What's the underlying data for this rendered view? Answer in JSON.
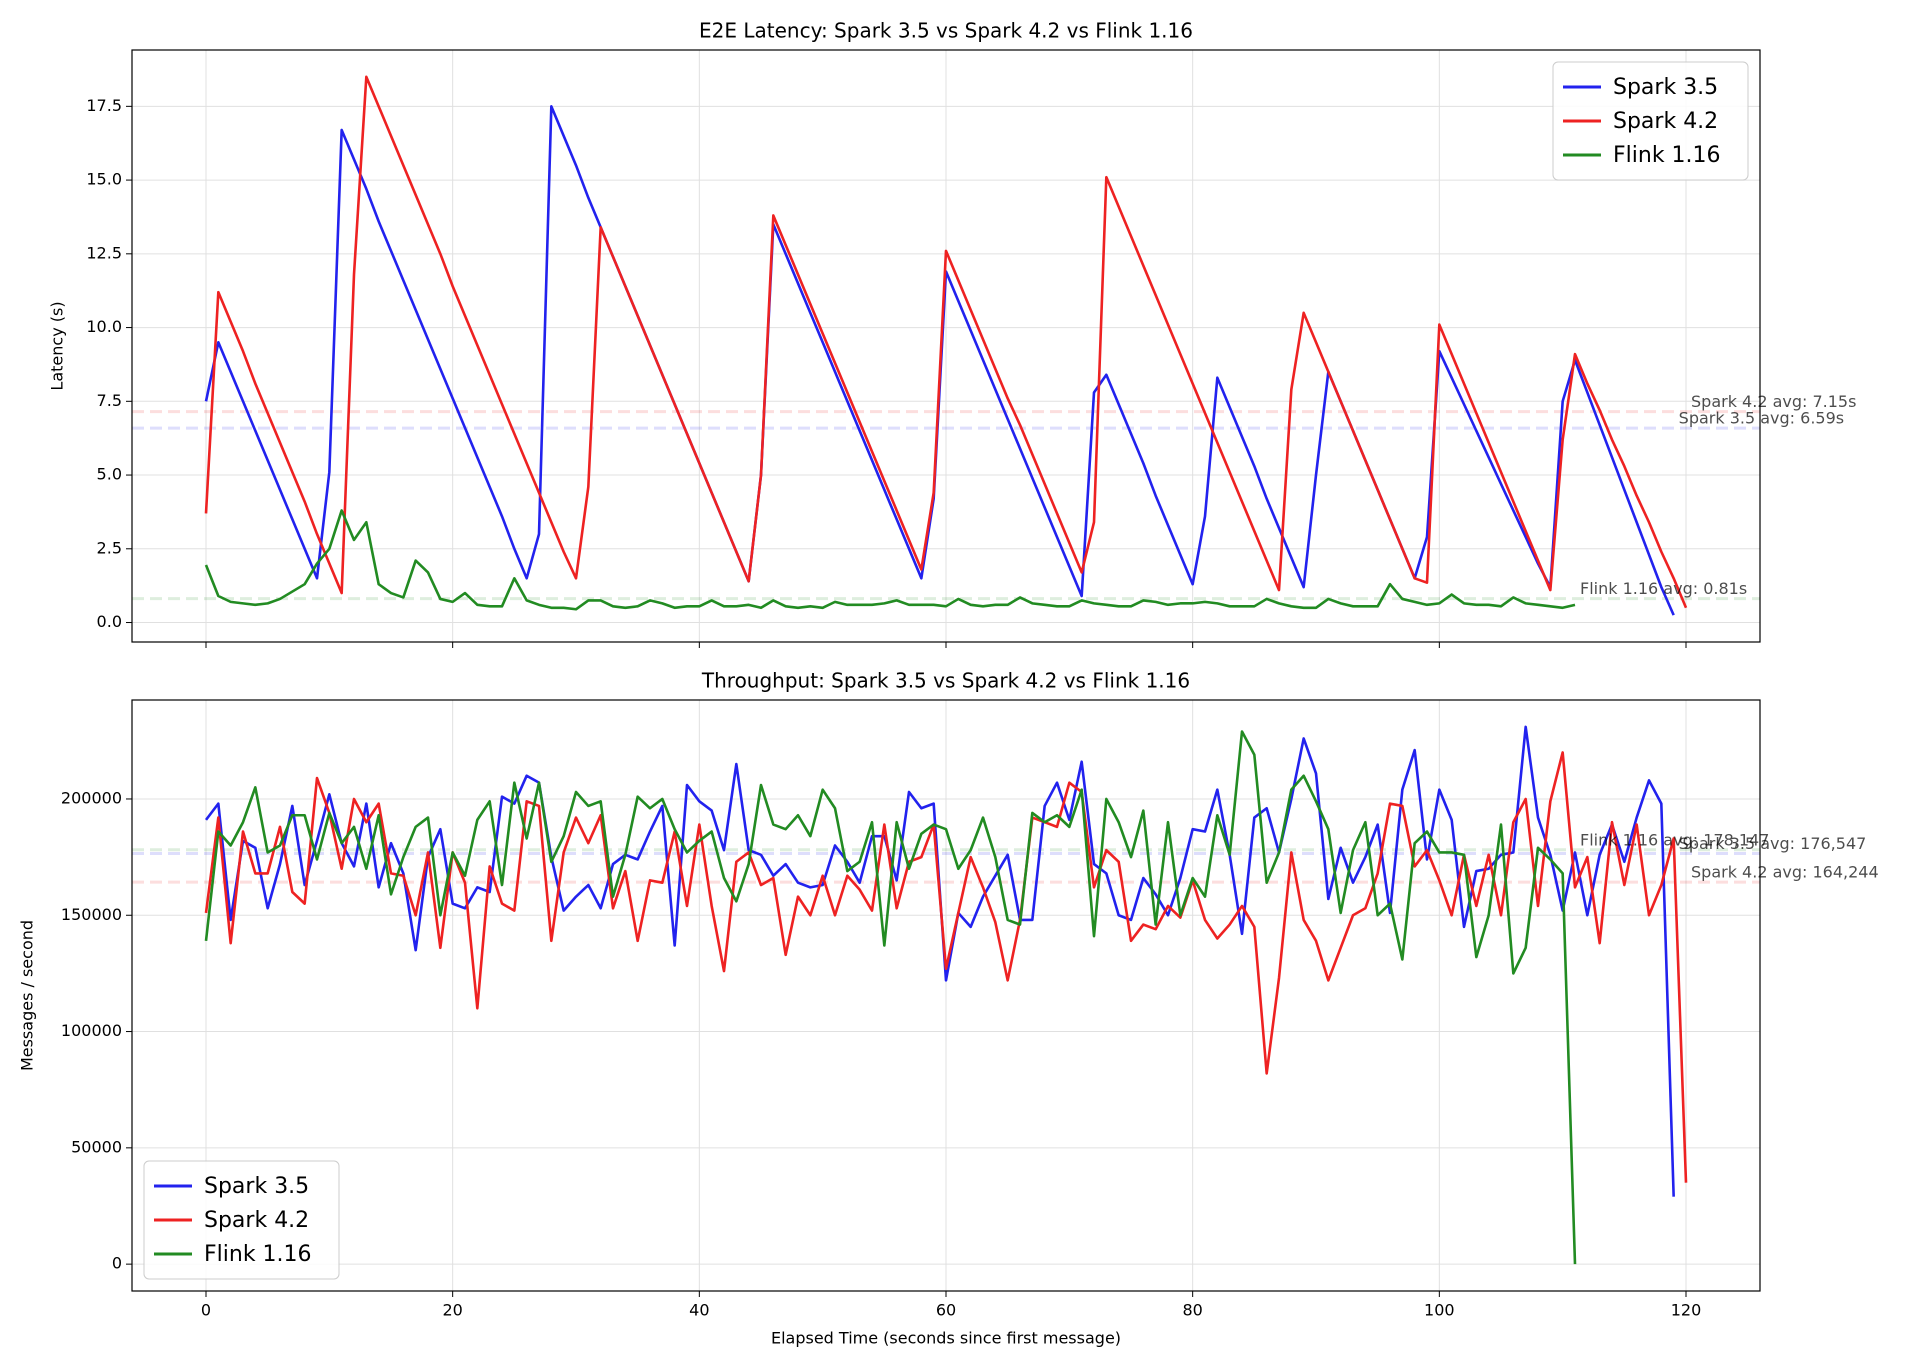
{
  "chart_data": [
    {
      "type": "line",
      "title": "E2E Latency: Spark 3.5 vs Spark 4.2 vs Flink 1.16",
      "y_label": "Latency (s)",
      "xlim": [
        -6,
        126
      ],
      "xticks": [
        0,
        20,
        40,
        60,
        80,
        100,
        120
      ],
      "show_xtick_labels": false,
      "ylim": [
        -0.66,
        19.41
      ],
      "yticks": [
        {
          "value": 0,
          "label": "0.0"
        },
        2.5,
        {
          "value": 5,
          "label": "5.0"
        },
        7.5,
        {
          "value": 10,
          "label": "10.0"
        },
        12.5,
        {
          "value": 15,
          "label": "15.0"
        },
        17.5
      ],
      "grid": true,
      "legend": "upper right",
      "x": [
        0,
        1,
        2,
        3,
        4,
        5,
        6,
        7,
        8,
        9,
        10,
        11,
        12,
        13,
        14,
        15,
        16,
        17,
        18,
        19,
        20,
        21,
        22,
        23,
        24,
        25,
        26,
        27,
        28,
        29,
        30,
        31,
        32,
        33,
        34,
        35,
        36,
        37,
        38,
        39,
        40,
        41,
        42,
        43,
        44,
        45,
        46,
        47,
        48,
        49,
        50,
        51,
        52,
        53,
        54,
        55,
        56,
        57,
        58,
        59,
        60,
        61,
        62,
        63,
        64,
        65,
        66,
        67,
        68,
        69,
        70,
        71,
        72,
        73,
        74,
        75,
        76,
        77,
        78,
        79,
        80,
        81,
        82,
        83,
        84,
        85,
        86,
        87,
        88,
        89,
        90,
        91,
        92,
        93,
        94,
        95,
        96,
        97,
        98,
        99,
        100,
        101,
        102,
        103,
        104,
        105,
        106,
        107,
        108,
        109,
        110,
        111,
        112,
        113,
        114,
        115,
        116,
        117,
        118,
        119,
        120
      ],
      "series": [
        {
          "name": "Spark 3.5",
          "color": "#2222ee",
          "avg": 6.59,
          "avg_label": "Spark 3.5 avg: 6.59s",
          "values": [
            7.5,
            9.5,
            8.5,
            7.5,
            6.5,
            5.5,
            4.5,
            3.5,
            2.5,
            1.5,
            5.1,
            16.7,
            15.7,
            14.7,
            13.6,
            12.6,
            11.6,
            10.6,
            9.6,
            8.6,
            7.6,
            6.6,
            5.6,
            4.6,
            3.6,
            2.5,
            1.5,
            3.0,
            17.5,
            16.5,
            15.5,
            14.4,
            13.4,
            12.4,
            11.4,
            10.4,
            9.4,
            8.4,
            7.4,
            6.4,
            5.4,
            4.4,
            3.4,
            2.4,
            1.4,
            5.0,
            13.5,
            12.5,
            11.5,
            10.5,
            9.5,
            8.5,
            7.5,
            6.5,
            5.5,
            4.5,
            3.5,
            2.5,
            1.5,
            4.2,
            11.9,
            10.9,
            9.9,
            8.9,
            7.9,
            6.9,
            5.9,
            4.9,
            3.9,
            2.9,
            1.9,
            0.9,
            7.8,
            8.4,
            7.4,
            6.4,
            5.4,
            4.3,
            3.3,
            2.3,
            1.3,
            3.6,
            8.3,
            7.3,
            6.3,
            5.3,
            4.2,
            3.2,
            2.2,
            1.2,
            5.0,
            8.5,
            7.5,
            6.5,
            5.5,
            4.5,
            3.5,
            2.5,
            1.5,
            2.9,
            9.2,
            8.3,
            7.4,
            6.5,
            5.6,
            4.7,
            3.8,
            2.9,
            2.0,
            1.2,
            7.5,
            8.9,
            7.8,
            6.7,
            5.6,
            4.5,
            3.4,
            2.3,
            1.2,
            0.25,
            null
          ]
        },
        {
          "name": "Spark 4.2",
          "color": "#ee2222",
          "avg": 7.15,
          "avg_label": "Spark 4.2 avg: 7.15s",
          "values": [
            3.7,
            11.2,
            10.2,
            9.2,
            8.1,
            7.1,
            6.1,
            5.1,
            4.1,
            3.0,
            2.0,
            1.0,
            11.8,
            18.5,
            17.5,
            16.5,
            15.5,
            14.5,
            13.5,
            12.5,
            11.4,
            10.4,
            9.4,
            8.4,
            7.4,
            6.4,
            5.4,
            4.4,
            3.4,
            2.4,
            1.5,
            4.6,
            13.4,
            12.4,
            11.4,
            10.4,
            9.4,
            8.4,
            7.4,
            6.4,
            5.4,
            4.4,
            3.4,
            2.4,
            1.4,
            5.0,
            13.8,
            12.8,
            11.8,
            10.8,
            9.8,
            8.8,
            7.8,
            6.8,
            5.8,
            4.8,
            3.8,
            2.8,
            1.8,
            4.4,
            12.6,
            11.6,
            10.6,
            9.6,
            8.6,
            7.6,
            6.7,
            5.7,
            4.7,
            3.7,
            2.7,
            1.7,
            3.4,
            15.1,
            14.1,
            13.1,
            12.1,
            11.1,
            10.1,
            9.1,
            8.1,
            7.1,
            6.1,
            5.1,
            4.1,
            3.1,
            2.1,
            1.1,
            7.9,
            10.5,
            9.5,
            8.5,
            7.5,
            6.5,
            5.5,
            4.5,
            3.5,
            2.5,
            1.5,
            1.35,
            10.1,
            9.1,
            8.1,
            7.1,
            6.1,
            5.1,
            4.1,
            3.1,
            2.1,
            1.1,
            6.2,
            9.1,
            8.1,
            7.2,
            6.2,
            5.3,
            4.3,
            3.4,
            2.4,
            1.5,
            0.5
          ]
        },
        {
          "name": "Flink 1.16",
          "color": "#228b22",
          "avg": 0.81,
          "avg_label": "Flink 1.16 avg: 0.81s",
          "values": [
            1.95,
            0.9,
            0.7,
            0.65,
            0.6,
            0.65,
            0.8,
            1.05,
            1.3,
            2.0,
            2.5,
            3.8,
            2.8,
            3.4,
            1.3,
            1.0,
            0.85,
            2.1,
            1.7,
            0.8,
            0.7,
            1.0,
            0.6,
            0.55,
            0.55,
            1.5,
            0.75,
            0.6,
            0.5,
            0.5,
            0.45,
            0.75,
            0.75,
            0.55,
            0.5,
            0.55,
            0.75,
            0.65,
            0.5,
            0.55,
            0.55,
            0.75,
            0.55,
            0.55,
            0.6,
            0.5,
            0.75,
            0.55,
            0.5,
            0.55,
            0.5,
            0.7,
            0.6,
            0.6,
            0.6,
            0.65,
            0.75,
            0.6,
            0.6,
            0.6,
            0.55,
            0.8,
            0.6,
            0.55,
            0.6,
            0.6,
            0.85,
            0.65,
            0.6,
            0.55,
            0.55,
            0.75,
            0.65,
            0.6,
            0.55,
            0.55,
            0.75,
            0.7,
            0.6,
            0.65,
            0.65,
            0.7,
            0.65,
            0.55,
            0.55,
            0.55,
            0.8,
            0.65,
            0.55,
            0.5,
            0.5,
            0.8,
            0.65,
            0.55,
            0.55,
            0.55,
            1.3,
            0.8,
            0.7,
            0.6,
            0.65,
            0.95,
            0.65,
            0.6,
            0.6,
            0.55,
            0.85,
            0.65,
            0.6,
            0.55,
            0.5,
            0.6,
            null,
            null,
            null,
            null,
            null,
            null,
            null,
            null,
            null
          ]
        }
      ]
    },
    {
      "type": "line",
      "title": "Throughput: Spark 3.5 vs Spark 4.2 vs Flink 1.16",
      "y_label": "Messages / second",
      "x_label": "Elapsed Time (seconds since first message)",
      "xlim": [
        -6,
        126
      ],
      "xticks": [
        0,
        20,
        40,
        60,
        80,
        100,
        120
      ],
      "show_xtick_labels": true,
      "ylim": [
        -11550,
        242550
      ],
      "yticks": [
        0,
        50000,
        100000,
        150000,
        200000
      ],
      "grid": true,
      "legend": "lower left",
      "x": [
        0,
        1,
        2,
        3,
        4,
        5,
        6,
        7,
        8,
        9,
        10,
        11,
        12,
        13,
        14,
        15,
        16,
        17,
        18,
        19,
        20,
        21,
        22,
        23,
        24,
        25,
        26,
        27,
        28,
        29,
        30,
        31,
        32,
        33,
        34,
        35,
        36,
        37,
        38,
        39,
        40,
        41,
        42,
        43,
        44,
        45,
        46,
        47,
        48,
        49,
        50,
        51,
        52,
        53,
        54,
        55,
        56,
        57,
        58,
        59,
        60,
        61,
        62,
        63,
        64,
        65,
        66,
        67,
        68,
        69,
        70,
        71,
        72,
        73,
        74,
        75,
        76,
        77,
        78,
        79,
        80,
        81,
        82,
        83,
        84,
        85,
        86,
        87,
        88,
        89,
        90,
        91,
        92,
        93,
        94,
        95,
        96,
        97,
        98,
        99,
        100,
        101,
        102,
        103,
        104,
        105,
        106,
        107,
        108,
        109,
        110,
        111,
        112,
        113,
        114,
        115,
        116,
        117,
        118,
        119,
        120
      ],
      "series": [
        {
          "name": "Spark 3.5",
          "color": "#2222ee",
          "avg": 176547,
          "avg_label": "Spark 3.5 avg: 176,547",
          "values": [
            191000,
            198000,
            148000,
            182000,
            179000,
            153000,
            172000,
            197000,
            163000,
            182000,
            202000,
            181000,
            171000,
            198000,
            162000,
            181000,
            168000,
            135000,
            175000,
            187000,
            155000,
            153000,
            162000,
            160000,
            201000,
            198000,
            210000,
            207000,
            175000,
            152000,
            158000,
            163000,
            153000,
            172000,
            176000,
            174000,
            186000,
            197000,
            137000,
            206000,
            199000,
            195000,
            178000,
            215000,
            178000,
            176000,
            167000,
            172000,
            164000,
            162000,
            163000,
            180000,
            173000,
            164000,
            184000,
            184000,
            165000,
            203000,
            196000,
            198000,
            122000,
            151000,
            145000,
            158000,
            167000,
            176000,
            148000,
            148000,
            197000,
            207000,
            191000,
            216000,
            172000,
            168000,
            150000,
            148000,
            166000,
            159000,
            150000,
            166000,
            187000,
            186000,
            204000,
            176000,
            142000,
            192000,
            196000,
            177000,
            200000,
            226000,
            211000,
            157000,
            179000,
            164000,
            175000,
            189000,
            151000,
            204000,
            221000,
            174000,
            204000,
            191000,
            145000,
            169000,
            170000,
            176000,
            177000,
            231000,
            192000,
            176000,
            152000,
            177000,
            150000,
            176000,
            189000,
            173000,
            192000,
            208000,
            198000,
            29000,
            null
          ]
        },
        {
          "name": "Spark 4.2",
          "color": "#ee2222",
          "avg": 164244,
          "avg_label": "Spark 4.2 avg: 164,244",
          "values": [
            151000,
            192000,
            138000,
            186000,
            168000,
            168000,
            188000,
            160000,
            155000,
            209000,
            194000,
            170000,
            200000,
            190000,
            198000,
            168000,
            167000,
            150000,
            177000,
            136000,
            177000,
            164000,
            110000,
            171000,
            155000,
            152000,
            199000,
            197000,
            139000,
            177000,
            192000,
            181000,
            193000,
            153000,
            169000,
            139000,
            165000,
            164000,
            186000,
            154000,
            189000,
            154000,
            126000,
            173000,
            177000,
            163000,
            166000,
            133000,
            158000,
            150000,
            167000,
            150000,
            167000,
            161000,
            152000,
            189000,
            153000,
            173000,
            175000,
            189000,
            127000,
            151000,
            175000,
            162000,
            147000,
            122000,
            148000,
            192000,
            190000,
            188000,
            207000,
            203000,
            162000,
            178000,
            173000,
            139000,
            146000,
            144000,
            154000,
            149000,
            165000,
            148000,
            140000,
            146000,
            154000,
            145000,
            82000,
            123000,
            177000,
            148000,
            139000,
            122000,
            136000,
            150000,
            153000,
            168000,
            198000,
            197000,
            171000,
            178000,
            165000,
            150000,
            176000,
            154000,
            176000,
            150000,
            190000,
            200000,
            154000,
            199000,
            220000,
            162000,
            175000,
            138000,
            190000,
            163000,
            189000,
            150000,
            163000,
            183000,
            35000
          ]
        },
        {
          "name": "Flink 1.16",
          "color": "#228b22",
          "avg": 178147,
          "avg_label": "Flink 1.16 avg: 178,147",
          "values": [
            139000,
            186000,
            180000,
            190000,
            205000,
            177000,
            180000,
            193000,
            193000,
            174000,
            194000,
            181000,
            188000,
            170000,
            193000,
            159000,
            175000,
            188000,
            192000,
            150000,
            177000,
            167000,
            191000,
            199000,
            163000,
            207000,
            183000,
            207000,
            173000,
            184000,
            203000,
            197000,
            199000,
            158000,
            176000,
            201000,
            196000,
            200000,
            187000,
            177000,
            182000,
            186000,
            166000,
            156000,
            172000,
            206000,
            189000,
            187000,
            193000,
            184000,
            204000,
            196000,
            169000,
            173000,
            190000,
            137000,
            190000,
            170000,
            185000,
            189000,
            187000,
            170000,
            178000,
            192000,
            175000,
            148000,
            146000,
            194000,
            190000,
            193000,
            188000,
            204000,
            141000,
            200000,
            190000,
            175000,
            195000,
            146000,
            190000,
            150000,
            166000,
            158000,
            193000,
            176000,
            229000,
            219000,
            164000,
            177000,
            204000,
            210000,
            199000,
            187000,
            151000,
            178000,
            190000,
            150000,
            155000,
            131000,
            181000,
            186000,
            177000,
            177000,
            176000,
            132000,
            150000,
            189000,
            125000,
            136000,
            179000,
            174000,
            168000,
            0,
            null,
            null,
            null,
            null,
            null,
            null,
            null,
            null,
            null
          ]
        }
      ]
    }
  ]
}
